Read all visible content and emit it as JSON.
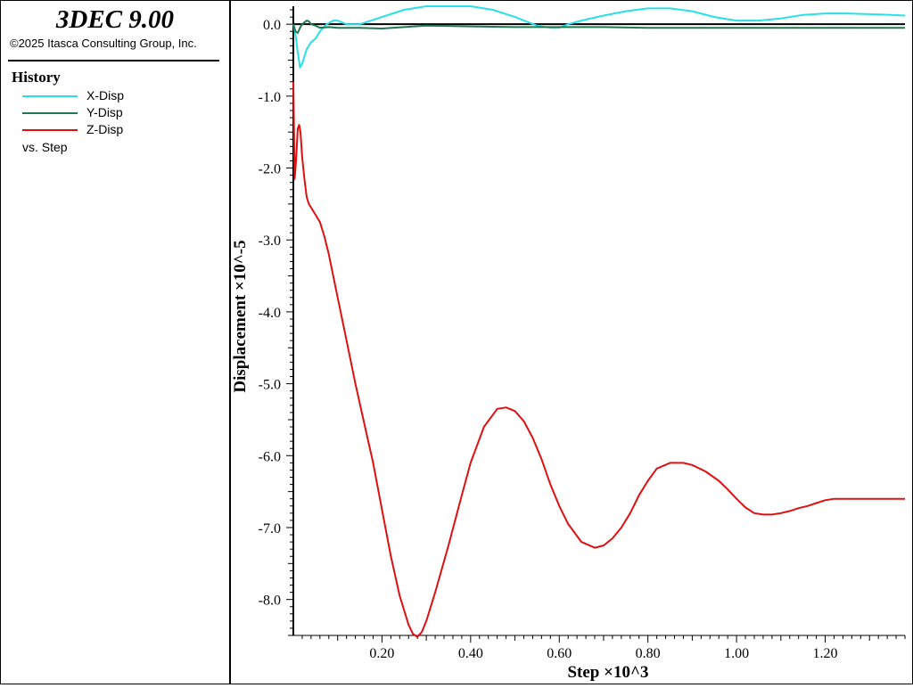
{
  "app": {
    "title": "3DEC 9.00",
    "copyright": "©2025 Itasca Consulting Group, Inc."
  },
  "legend": {
    "title": "History",
    "items": [
      {
        "label": "X-Disp",
        "color": "#28e0e8"
      },
      {
        "label": "Y-Disp",
        "color": "#207850"
      },
      {
        "label": "Z-Disp",
        "color": "#e01010"
      }
    ],
    "vs_label": "vs. Step"
  },
  "chart_data": {
    "type": "line",
    "xlabel": "Step ×10^3",
    "ylabel": "Displacement ×10^-5",
    "xlim": [
      0,
      1.38
    ],
    "ylim": [
      -8.5,
      0.25
    ],
    "xticks": [
      {
        "v": 0.2,
        "label": "0.20"
      },
      {
        "v": 0.4,
        "label": "0.40"
      },
      {
        "v": 0.6,
        "label": "0.60"
      },
      {
        "v": 0.8,
        "label": "0.80"
      },
      {
        "v": 1.0,
        "label": "1.00"
      },
      {
        "v": 1.2,
        "label": "1.20"
      }
    ],
    "yticks": [
      {
        "v": 0.0,
        "label": "0.0"
      },
      {
        "v": -1.0,
        "label": "-1.0"
      },
      {
        "v": -2.0,
        "label": "-2.0"
      },
      {
        "v": -3.0,
        "label": "-3.0"
      },
      {
        "v": -4.0,
        "label": "-4.0"
      },
      {
        "v": -5.0,
        "label": "-5.0"
      },
      {
        "v": -6.0,
        "label": "-6.0"
      },
      {
        "v": -7.0,
        "label": "-7.0"
      },
      {
        "v": -8.0,
        "label": "-8.0"
      }
    ],
    "grid": false,
    "series": [
      {
        "name": "X-Disp",
        "color": "#28e0e8",
        "x": [
          0.0,
          0.005,
          0.01,
          0.015,
          0.02,
          0.03,
          0.04,
          0.05,
          0.06,
          0.075,
          0.09,
          0.1,
          0.12,
          0.15,
          0.2,
          0.25,
          0.3,
          0.35,
          0.4,
          0.45,
          0.5,
          0.55,
          0.58,
          0.6,
          0.62,
          0.65,
          0.7,
          0.75,
          0.8,
          0.85,
          0.9,
          0.95,
          1.0,
          1.05,
          1.1,
          1.15,
          1.2,
          1.25,
          1.3,
          1.35,
          1.38
        ],
        "y": [
          0.0,
          -0.15,
          -0.4,
          -0.6,
          -0.55,
          -0.35,
          -0.25,
          -0.2,
          -0.1,
          0.0,
          0.05,
          0.05,
          0.0,
          0.0,
          0.1,
          0.2,
          0.25,
          0.25,
          0.25,
          0.2,
          0.1,
          -0.02,
          -0.05,
          -0.05,
          0.0,
          0.05,
          0.12,
          0.18,
          0.22,
          0.22,
          0.18,
          0.1,
          0.05,
          0.05,
          0.08,
          0.13,
          0.15,
          0.15,
          0.14,
          0.13,
          0.12
        ]
      },
      {
        "name": "Y-Disp",
        "color": "#207850",
        "x": [
          0.0,
          0.005,
          0.01,
          0.015,
          0.02,
          0.03,
          0.035,
          0.04,
          0.05,
          0.06,
          0.08,
          0.1,
          0.15,
          0.2,
          0.25,
          0.3,
          0.4,
          0.5,
          0.6,
          0.7,
          0.8,
          0.9,
          1.0,
          1.1,
          1.2,
          1.3,
          1.38
        ],
        "y": [
          0.0,
          -0.1,
          -0.12,
          -0.05,
          0.0,
          0.05,
          0.04,
          0.0,
          -0.02,
          -0.05,
          -0.04,
          -0.05,
          -0.05,
          -0.06,
          -0.04,
          -0.02,
          -0.03,
          -0.04,
          -0.04,
          -0.04,
          -0.05,
          -0.05,
          -0.05,
          -0.05,
          -0.05,
          -0.05,
          -0.05
        ]
      },
      {
        "name": "Z-Disp",
        "color": "#e01010",
        "x": [
          0.0,
          0.003,
          0.006,
          0.01,
          0.013,
          0.016,
          0.02,
          0.025,
          0.03,
          0.035,
          0.04,
          0.045,
          0.05,
          0.06,
          0.07,
          0.08,
          0.1,
          0.12,
          0.14,
          0.16,
          0.18,
          0.2,
          0.22,
          0.24,
          0.26,
          0.27,
          0.28,
          0.29,
          0.3,
          0.32,
          0.35,
          0.38,
          0.4,
          0.43,
          0.46,
          0.48,
          0.5,
          0.52,
          0.54,
          0.56,
          0.58,
          0.6,
          0.62,
          0.65,
          0.68,
          0.7,
          0.72,
          0.74,
          0.76,
          0.78,
          0.8,
          0.82,
          0.85,
          0.88,
          0.9,
          0.93,
          0.96,
          0.98,
          1.0,
          1.02,
          1.04,
          1.06,
          1.08,
          1.1,
          1.12,
          1.14,
          1.16,
          1.18,
          1.2,
          1.22,
          1.25,
          1.28,
          1.3,
          1.32,
          1.35,
          1.38
        ],
        "y": [
          -0.8,
          -2.15,
          -1.9,
          -1.45,
          -1.4,
          -1.5,
          -1.85,
          -2.15,
          -2.4,
          -2.5,
          -2.55,
          -2.6,
          -2.65,
          -2.75,
          -2.95,
          -3.2,
          -3.8,
          -4.4,
          -5.0,
          -5.55,
          -6.1,
          -6.75,
          -7.4,
          -7.95,
          -8.35,
          -8.48,
          -8.52,
          -8.45,
          -8.3,
          -7.9,
          -7.25,
          -6.55,
          -6.1,
          -5.6,
          -5.35,
          -5.33,
          -5.38,
          -5.52,
          -5.75,
          -6.05,
          -6.4,
          -6.7,
          -6.95,
          -7.2,
          -7.28,
          -7.25,
          -7.15,
          -7.0,
          -6.8,
          -6.55,
          -6.35,
          -6.18,
          -6.1,
          -6.1,
          -6.13,
          -6.22,
          -6.35,
          -6.47,
          -6.6,
          -6.72,
          -6.8,
          -6.82,
          -6.82,
          -6.8,
          -6.77,
          -6.73,
          -6.7,
          -6.66,
          -6.62,
          -6.6,
          -6.6,
          -6.6,
          -6.6,
          -6.6,
          -6.6,
          -6.6
        ]
      }
    ]
  }
}
